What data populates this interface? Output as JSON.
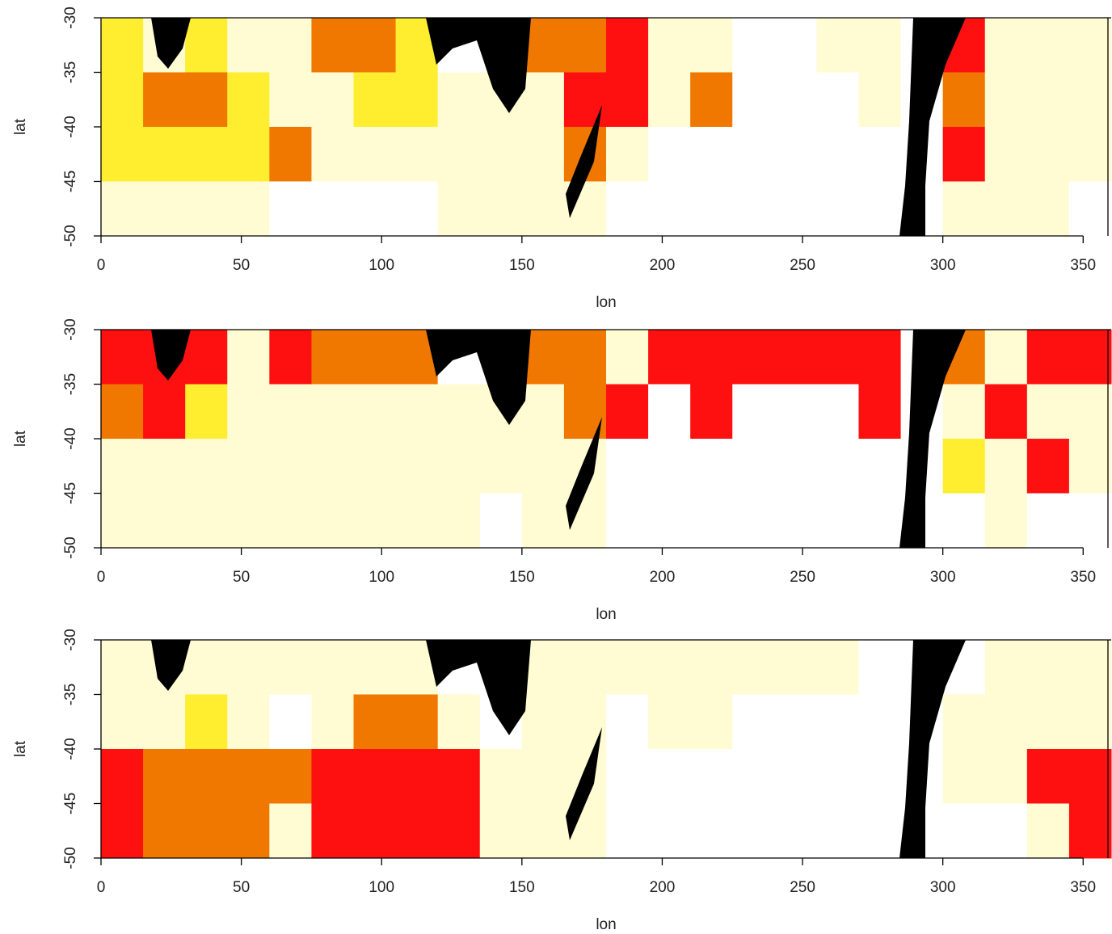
{
  "chart_data": [
    {
      "type": "heatmap",
      "xlabel": "lon",
      "ylabel": "lat",
      "xlim": [
        0,
        360
      ],
      "ylim": [
        -50,
        -30
      ],
      "xticks": [
        0,
        50,
        100,
        150,
        200,
        250,
        300,
        350
      ],
      "yticks": [
        -30,
        -35,
        -40,
        -45,
        -50
      ],
      "colors": [
        "#ffffff",
        "#fffbd2",
        "#ffee30",
        "#f07800",
        "#ff1010"
      ],
      "x": [
        7.5,
        22.5,
        37.5,
        52.5,
        67.5,
        82.5,
        97.5,
        112.5,
        127.5,
        142.5,
        157.5,
        172.5,
        187.5,
        202.5,
        217.5,
        232.5,
        247.5,
        262.5,
        277.5,
        292.5,
        307.5,
        322.5,
        337.5,
        352.5
      ],
      "y": [
        -32.5,
        -37.5,
        -42.5,
        -47.5
      ],
      "z": [
        [
          2,
          1,
          2,
          1,
          1,
          3,
          3,
          2,
          0,
          0,
          3,
          3,
          4,
          1,
          1,
          0,
          0,
          1,
          1,
          0,
          4,
          1,
          1,
          1
        ],
        [
          2,
          3,
          3,
          2,
          1,
          1,
          2,
          2,
          1,
          1,
          1,
          4,
          4,
          1,
          3,
          0,
          0,
          0,
          1,
          0,
          3,
          1,
          1,
          1
        ],
        [
          2,
          2,
          2,
          2,
          3,
          1,
          1,
          1,
          1,
          1,
          1,
          3,
          1,
          0,
          0,
          0,
          0,
          0,
          0,
          0,
          4,
          1,
          1,
          1
        ],
        [
          1,
          1,
          1,
          1,
          0,
          0,
          0,
          0,
          1,
          1,
          1,
          1,
          0,
          0,
          0,
          0,
          0,
          0,
          0,
          0,
          1,
          1,
          1,
          0
        ]
      ]
    },
    {
      "type": "heatmap",
      "xlabel": "lon",
      "ylabel": "lat",
      "xlim": [
        0,
        360
      ],
      "ylim": [
        -50,
        -30
      ],
      "xticks": [
        0,
        50,
        100,
        150,
        200,
        250,
        300,
        350
      ],
      "yticks": [
        -30,
        -35,
        -40,
        -45,
        -50
      ],
      "colors": [
        "#ffffff",
        "#fffbd2",
        "#ffee30",
        "#f07800",
        "#ff1010"
      ],
      "x": [
        7.5,
        22.5,
        37.5,
        52.5,
        67.5,
        82.5,
        97.5,
        112.5,
        127.5,
        142.5,
        157.5,
        172.5,
        187.5,
        202.5,
        217.5,
        232.5,
        247.5,
        262.5,
        277.5,
        292.5,
        307.5,
        322.5,
        337.5,
        352.5
      ],
      "y": [
        -32.5,
        -37.5,
        -42.5,
        -47.5
      ],
      "z": [
        [
          4,
          4,
          4,
          1,
          4,
          3,
          3,
          3,
          0,
          0,
          3,
          3,
          1,
          4,
          4,
          4,
          4,
          4,
          4,
          0,
          3,
          1,
          4,
          4
        ],
        [
          3,
          4,
          2,
          1,
          1,
          1,
          1,
          1,
          1,
          1,
          1,
          3,
          4,
          0,
          4,
          0,
          0,
          0,
          4,
          0,
          1,
          4,
          1,
          1
        ],
        [
          1,
          1,
          1,
          1,
          1,
          1,
          1,
          1,
          1,
          1,
          1,
          1,
          0,
          0,
          0,
          0,
          0,
          0,
          0,
          0,
          2,
          1,
          4,
          1
        ],
        [
          1,
          1,
          1,
          1,
          1,
          1,
          1,
          1,
          1,
          0,
          1,
          1,
          0,
          0,
          0,
          0,
          0,
          0,
          0,
          0,
          0,
          1,
          0,
          0
        ]
      ]
    },
    {
      "type": "heatmap",
      "xlabel": "lon",
      "ylabel": "lat",
      "xlim": [
        0,
        360
      ],
      "ylim": [
        -50,
        -30
      ],
      "xticks": [
        0,
        50,
        100,
        150,
        200,
        250,
        300,
        350
      ],
      "yticks": [
        -30,
        -35,
        -40,
        -45,
        -50
      ],
      "colors": [
        "#ffffff",
        "#fffbd2",
        "#ffee30",
        "#f07800",
        "#ff1010"
      ],
      "x": [
        7.5,
        22.5,
        37.5,
        52.5,
        67.5,
        82.5,
        97.5,
        112.5,
        127.5,
        142.5,
        157.5,
        172.5,
        187.5,
        202.5,
        217.5,
        232.5,
        247.5,
        262.5,
        277.5,
        292.5,
        307.5,
        322.5,
        337.5,
        352.5
      ],
      "y": [
        -32.5,
        -37.5,
        -42.5,
        -47.5
      ],
      "z": [
        [
          1,
          1,
          1,
          1,
          1,
          1,
          1,
          1,
          0,
          0,
          1,
          1,
          1,
          1,
          1,
          1,
          1,
          1,
          0,
          0,
          0,
          1,
          1,
          1
        ],
        [
          1,
          1,
          2,
          1,
          0,
          1,
          3,
          3,
          1,
          0,
          1,
          1,
          0,
          1,
          1,
          0,
          0,
          0,
          0,
          0,
          1,
          1,
          1,
          1
        ],
        [
          4,
          3,
          3,
          3,
          3,
          4,
          4,
          4,
          4,
          1,
          1,
          1,
          0,
          0,
          0,
          0,
          0,
          0,
          0,
          0,
          1,
          1,
          4,
          4
        ],
        [
          4,
          3,
          3,
          3,
          1,
          4,
          4,
          4,
          4,
          1,
          1,
          1,
          0,
          0,
          0,
          0,
          0,
          0,
          0,
          0,
          0,
          0,
          1,
          4
        ]
      ]
    }
  ]
}
